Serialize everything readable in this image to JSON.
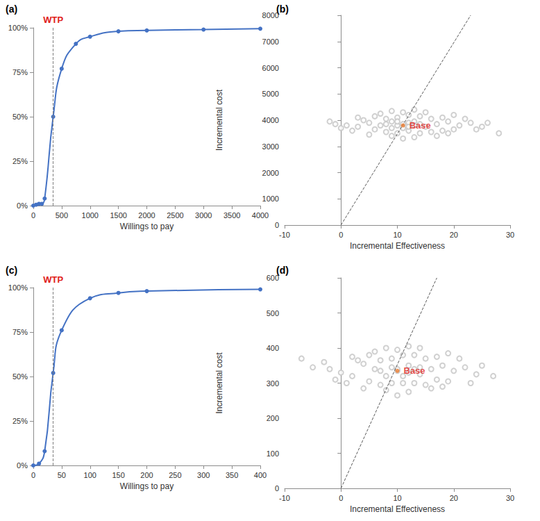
{
  "chart_data": [
    {
      "type": "line",
      "panel": "(a)",
      "x_label": "Willings to pay",
      "x": [
        0,
        50,
        100,
        150,
        200,
        350,
        500,
        750,
        1000,
        1500,
        2000,
        3000,
        4000
      ],
      "values": [
        0,
        0.5,
        1,
        1,
        4,
        50,
        77,
        91,
        95,
        98,
        98.5,
        99,
        99.5
      ],
      "color": "#4472c4",
      "marker": "circle",
      "line_style": "solid",
      "xlim": [
        0,
        4000
      ],
      "xticks": [
        0,
        500,
        1000,
        1500,
        2000,
        2500,
        3000,
        3500,
        4000
      ],
      "ylim": [
        0,
        100
      ],
      "yticks": [
        {
          "value": 0,
          "label": "0%"
        },
        {
          "value": 25,
          "label": "25%"
        },
        {
          "value": 50,
          "label": "50%"
        },
        {
          "value": 75,
          "label": "75%"
        },
        {
          "value": 100,
          "label": "100%"
        }
      ],
      "grid": false,
      "wtp": {
        "label": "WTP",
        "x": 350
      }
    },
    {
      "type": "scatter",
      "panel": "(b)",
      "x_label": "Incremental Effectiveness",
      "y_label": "Incremental cost",
      "x": [
        11,
        9,
        13,
        7,
        15,
        5,
        17,
        3,
        19,
        1,
        21,
        23,
        25,
        -1,
        28,
        10,
        12,
        8,
        14,
        6,
        16,
        4,
        18,
        2,
        20,
        22,
        11,
        9,
        13,
        7,
        15,
        5,
        17,
        10,
        12,
        8,
        14,
        6,
        16,
        18,
        3,
        19,
        24,
        0,
        11,
        13,
        9,
        26,
        -2,
        20,
        10,
        12,
        11,
        9,
        13,
        8,
        14,
        10,
        12
      ],
      "values": [
        3850,
        3700,
        3950,
        3800,
        3750,
        3900,
        3850,
        3750,
        3950,
        3800,
        3800,
        3900,
        3750,
        3850,
        3500,
        4100,
        3600,
        4050,
        4150,
        3650,
        3550,
        4000,
        4100,
        3600,
        3650,
        4050,
        4300,
        3400,
        3350,
        4250,
        4300,
        3450,
        3400,
        3500,
        4200,
        3550,
        3500,
        4150,
        4050,
        3600,
        4100,
        3500,
        3650,
        3700,
        3300,
        4400,
        4350,
        3900,
        3950,
        4200,
        3800,
        3900,
        3700,
        3950,
        3800,
        3850,
        3850,
        3950,
        3750
      ],
      "color": "#c4c4c4",
      "marker": "open circle",
      "xlim": [
        -10,
        30
      ],
      "xticks": [
        -10,
        0,
        10,
        20,
        30
      ],
      "ylim": [
        0,
        8000
      ],
      "yticks": [
        0,
        1000,
        2000,
        3000,
        4000,
        5000,
        6000,
        7000,
        8000
      ],
      "grid": false,
      "threshold_line": {
        "x": [
          0,
          23
        ],
        "y": [
          0,
          8000
        ],
        "line_style": "dashed"
      },
      "base": {
        "label": "Base",
        "x": 11,
        "y": 3800,
        "color": "#ed7d31"
      }
    },
    {
      "type": "line",
      "panel": "(c)",
      "x_label": "Willings to pay",
      "x": [
        0,
        10,
        20,
        35,
        50,
        100,
        150,
        200,
        400
      ],
      "values": [
        0,
        1,
        8,
        52,
        76,
        94,
        97,
        98,
        99
      ],
      "color": "#4472c4",
      "marker": "circle",
      "line_style": "solid",
      "xlim": [
        0,
        400
      ],
      "xticks": [
        0,
        50,
        100,
        150,
        200,
        250,
        300,
        350,
        400
      ],
      "ylim": [
        0,
        100
      ],
      "yticks": [
        {
          "value": 0,
          "label": "0%"
        },
        {
          "value": 25,
          "label": "25%"
        },
        {
          "value": 50,
          "label": "50%"
        },
        {
          "value": 75,
          "label": "75%"
        },
        {
          "value": 100,
          "label": "100%"
        }
      ],
      "grid": false,
      "wtp": {
        "label": "WTP",
        "x": 35
      }
    },
    {
      "type": "scatter",
      "panel": "(d)",
      "x_label": "Incremental Effectiveness",
      "y_label": "Incremental cost",
      "x": [
        10,
        8,
        12,
        6,
        14,
        4,
        16,
        2,
        18,
        0,
        20,
        22,
        24,
        -2,
        -5,
        -7,
        27,
        9,
        11,
        7,
        13,
        5,
        15,
        3,
        17,
        1,
        19,
        21,
        10,
        8,
        12,
        6,
        14,
        4,
        16,
        9,
        11,
        7,
        13,
        5,
        15,
        17,
        2,
        18,
        23,
        -1,
        10,
        12,
        8,
        25,
        -3,
        19,
        10,
        12,
        11,
        9,
        13,
        7,
        14
      ],
      "values": [
        335,
        320,
        350,
        340,
        325,
        355,
        340,
        320,
        350,
        330,
        335,
        345,
        325,
        340,
        345,
        370,
        320,
        370,
        300,
        365,
        380,
        305,
        295,
        365,
        375,
        300,
        305,
        370,
        395,
        280,
        275,
        390,
        400,
        285,
        285,
        300,
        380,
        295,
        300,
        380,
        370,
        310,
        375,
        290,
        300,
        310,
        265,
        405,
        400,
        350,
        360,
        385,
        340,
        330,
        320,
        345,
        340,
        335,
        345
      ],
      "color": "#c4c4c4",
      "marker": "open circle",
      "xlim": [
        -10,
        30
      ],
      "xticks": [
        -10,
        0,
        10,
        20,
        30
      ],
      "ylim": [
        0,
        600
      ],
      "yticks": [
        0,
        100,
        200,
        300,
        400,
        500,
        600
      ],
      "grid": false,
      "threshold_line": {
        "x": [
          0,
          17
        ],
        "y": [
          0,
          600
        ],
        "line_style": "dashed"
      },
      "base": {
        "label": "Base",
        "x": 10,
        "y": 335,
        "color": "#ed7d31"
      }
    }
  ]
}
